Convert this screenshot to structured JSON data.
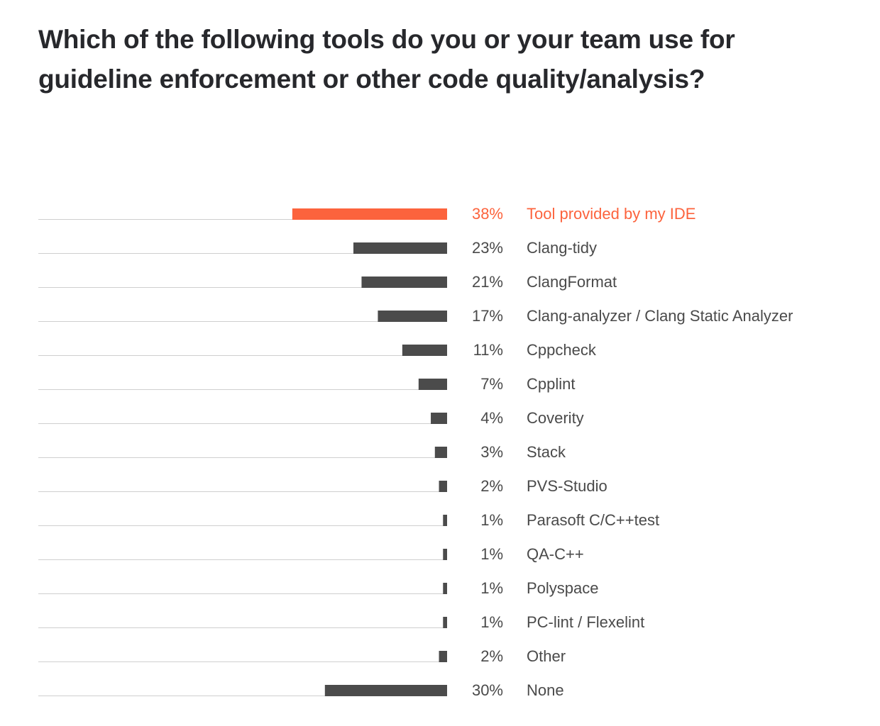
{
  "chart_data": {
    "type": "bar",
    "orientation": "horizontal",
    "title": "Which of the following tools do you or your team use for guideline enforcement or other code quality/analysis?",
    "value_suffix": "%",
    "categories": [
      "Tool provided by my IDE",
      "Clang-tidy",
      "ClangFormat",
      "Clang-analyzer / Clang Static Analyzer",
      "Cppcheck",
      "Cpplint",
      "Coverity",
      "Stack",
      "PVS-Studio",
      "Parasoft C/C++test",
      "QA-C++",
      "Polyspace",
      "PC-lint / Flexelint",
      "Other",
      "None"
    ],
    "values": [
      38,
      23,
      21,
      17,
      11,
      7,
      4,
      3,
      2,
      1,
      1,
      1,
      1,
      2,
      30
    ],
    "labels": [
      "38%",
      "23%",
      "21%",
      "17%",
      "11%",
      "7%",
      "4%",
      "3%",
      "2%",
      "1%",
      "1%",
      "1%",
      "1%",
      "2%",
      "30%"
    ],
    "highlight_index": 0,
    "xlim": [
      0,
      100
    ],
    "grid": false,
    "legend": "none",
    "colors": {
      "highlight": "#fc633d",
      "bar": "#4b4b4b",
      "baseline": "#cfcfcf",
      "text": "#4a4a4a",
      "title": "#27282c"
    }
  }
}
